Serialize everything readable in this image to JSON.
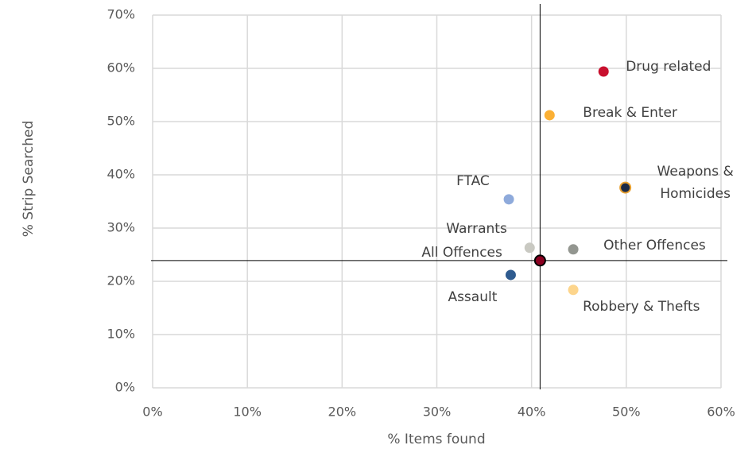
{
  "chart_data": {
    "type": "scatter",
    "xlabel": "% Items found",
    "ylabel": "% Strip Searched",
    "points": [
      {
        "name": "Drug related",
        "color": "#c8102e",
        "x": 47.6,
        "y": 59.4
      },
      {
        "name": "Break & Enter",
        "color": "#fbb034",
        "x": 41.9,
        "y": 51.2
      },
      {
        "name": "Weapons & Homicides",
        "color": "#1b2a47",
        "edge": "#e8a030",
        "x": 49.9,
        "y": 37.6
      },
      {
        "name": "FTAC",
        "color": "#8eaadb",
        "x": 37.6,
        "y": 35.4
      },
      {
        "name": "Warrants",
        "color": "#c9c9c2",
        "x": 39.8,
        "y": 26.3
      },
      {
        "name": "Other Offences",
        "color": "#939690",
        "x": 44.4,
        "y": 26.0
      },
      {
        "name": "All Offences",
        "color": "#8b0020",
        "edge": "#000000",
        "x": 40.9,
        "y": 23.9
      },
      {
        "name": "Assault",
        "color": "#2f5b8f",
        "x": 37.8,
        "y": 21.2
      },
      {
        "name": "Robbery & Thefts",
        "color": "#fdd58c",
        "x": 44.4,
        "y": 18.4
      }
    ],
    "xlim": [
      0,
      60
    ],
    "xticks": [
      {
        "value": 0,
        "label": "0%"
      },
      {
        "value": 10,
        "label": "10%"
      },
      {
        "value": 20,
        "label": "20%"
      },
      {
        "value": 30,
        "label": "30%"
      },
      {
        "value": 40,
        "label": "40%"
      },
      {
        "value": 50,
        "label": "50%"
      },
      {
        "value": 60,
        "label": "60%"
      }
    ],
    "ylim": [
      0,
      70
    ],
    "yticks": [
      {
        "value": 0,
        "label": "0%"
      },
      {
        "value": 10,
        "label": "10%"
      },
      {
        "value": 20,
        "label": "20%"
      },
      {
        "value": 30,
        "label": "30%"
      },
      {
        "value": 40,
        "label": "40%"
      },
      {
        "value": 50,
        "label": "50%"
      },
      {
        "value": 60,
        "label": "60%"
      },
      {
        "value": 70,
        "label": "70%"
      }
    ],
    "grid": true
  }
}
